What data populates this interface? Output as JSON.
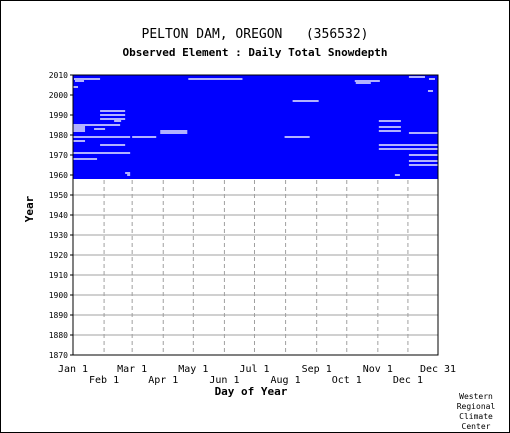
{
  "chart_data": {
    "type": "heatmap",
    "title": "PELTON DAM, OREGON   (356532)",
    "subtitle": "Observed Element : Daily Total Snowdepth",
    "xlabel": "Day of Year",
    "ylabel": "Year",
    "ylim": [
      1870,
      2010
    ],
    "yticks": [
      1870,
      1880,
      1890,
      1900,
      1910,
      1920,
      1930,
      1940,
      1950,
      1960,
      1970,
      1980,
      1990,
      2000,
      2010
    ],
    "xticks_top_row": [
      "Jan 1",
      "Mar 1",
      "May 1",
      "Jul 1",
      "Sep 1",
      "Nov 1",
      "Dec 31"
    ],
    "xticks_bottom_row": [
      "Feb 1",
      "Apr 1",
      "Jun 1",
      "Aug 1",
      "Oct 1",
      "Dec 1"
    ],
    "grid": true,
    "data_color": "#0000ff",
    "coverage": {
      "year_start": 1958,
      "year_end": 2010,
      "day_start": 1,
      "day_end": 365
    },
    "missing_segments": [
      {
        "year": 2008,
        "day_start": 2,
        "day_end": 28
      },
      {
        "year": 2007,
        "day_start": 3,
        "day_end": 12
      },
      {
        "year": 2008,
        "day_start": 116,
        "day_end": 170
      },
      {
        "year": 2007,
        "day_start": 282,
        "day_end": 307
      },
      {
        "year": 2006,
        "day_start": 283,
        "day_end": 298
      },
      {
        "year": 2009,
        "day_start": 336,
        "day_end": 352
      },
      {
        "year": 2008,
        "day_start": 356,
        "day_end": 362
      },
      {
        "year": 2004,
        "day_start": 1,
        "day_end": 6
      },
      {
        "year": 2002,
        "day_start": 355,
        "day_end": 360
      },
      {
        "year": 1997,
        "day_start": 220,
        "day_end": 246
      },
      {
        "year": 1992,
        "day_start": 28,
        "day_end": 53
      },
      {
        "year": 1990,
        "day_start": 28,
        "day_end": 53
      },
      {
        "year": 1988,
        "day_start": 28,
        "day_end": 53
      },
      {
        "year": 1987,
        "day_start": 42,
        "day_end": 49
      },
      {
        "year": 1985,
        "day_start": 1,
        "day_end": 48
      },
      {
        "year": 1984,
        "day_start": 1,
        "day_end": 13
      },
      {
        "year": 1983,
        "day_start": 1,
        "day_end": 13
      },
      {
        "year": 1983,
        "day_start": 22,
        "day_end": 33
      },
      {
        "year": 1982,
        "day_start": 1,
        "day_end": 13
      },
      {
        "year": 1982,
        "day_start": 88,
        "day_end": 115
      },
      {
        "year": 1981,
        "day_start": 88,
        "day_end": 115
      },
      {
        "year": 1981,
        "day_start": 336,
        "day_end": 365
      },
      {
        "year": 1979,
        "day_start": 1,
        "day_end": 58
      },
      {
        "year": 1979,
        "day_start": 60,
        "day_end": 84
      },
      {
        "year": 1979,
        "day_start": 212,
        "day_end": 237
      },
      {
        "year": 1977,
        "day_start": 1,
        "day_end": 13
      },
      {
        "year": 1975,
        "day_start": 28,
        "day_end": 53
      },
      {
        "year": 1971,
        "day_start": 1,
        "day_end": 58
      },
      {
        "year": 1968,
        "day_start": 1,
        "day_end": 25
      },
      {
        "year": 1987,
        "day_start": 306,
        "day_end": 328
      },
      {
        "year": 1984,
        "day_start": 306,
        "day_end": 328
      },
      {
        "year": 1982,
        "day_start": 306,
        "day_end": 328
      },
      {
        "year": 1975,
        "day_start": 306,
        "day_end": 365
      },
      {
        "year": 1973,
        "day_start": 306,
        "day_end": 365
      },
      {
        "year": 1970,
        "day_start": 336,
        "day_end": 365
      },
      {
        "year": 1967,
        "day_start": 336,
        "day_end": 365
      },
      {
        "year": 1965,
        "day_start": 336,
        "day_end": 365
      },
      {
        "year": 1960,
        "day_start": 322,
        "day_end": 327
      },
      {
        "year": 1961,
        "day_start": 53,
        "day_end": 58
      },
      {
        "year": 1960,
        "day_start": 55,
        "day_end": 58
      }
    ]
  },
  "footer": {
    "line1": "Western",
    "line2": "Regional",
    "line3": "Climate",
    "line4": "Center"
  }
}
